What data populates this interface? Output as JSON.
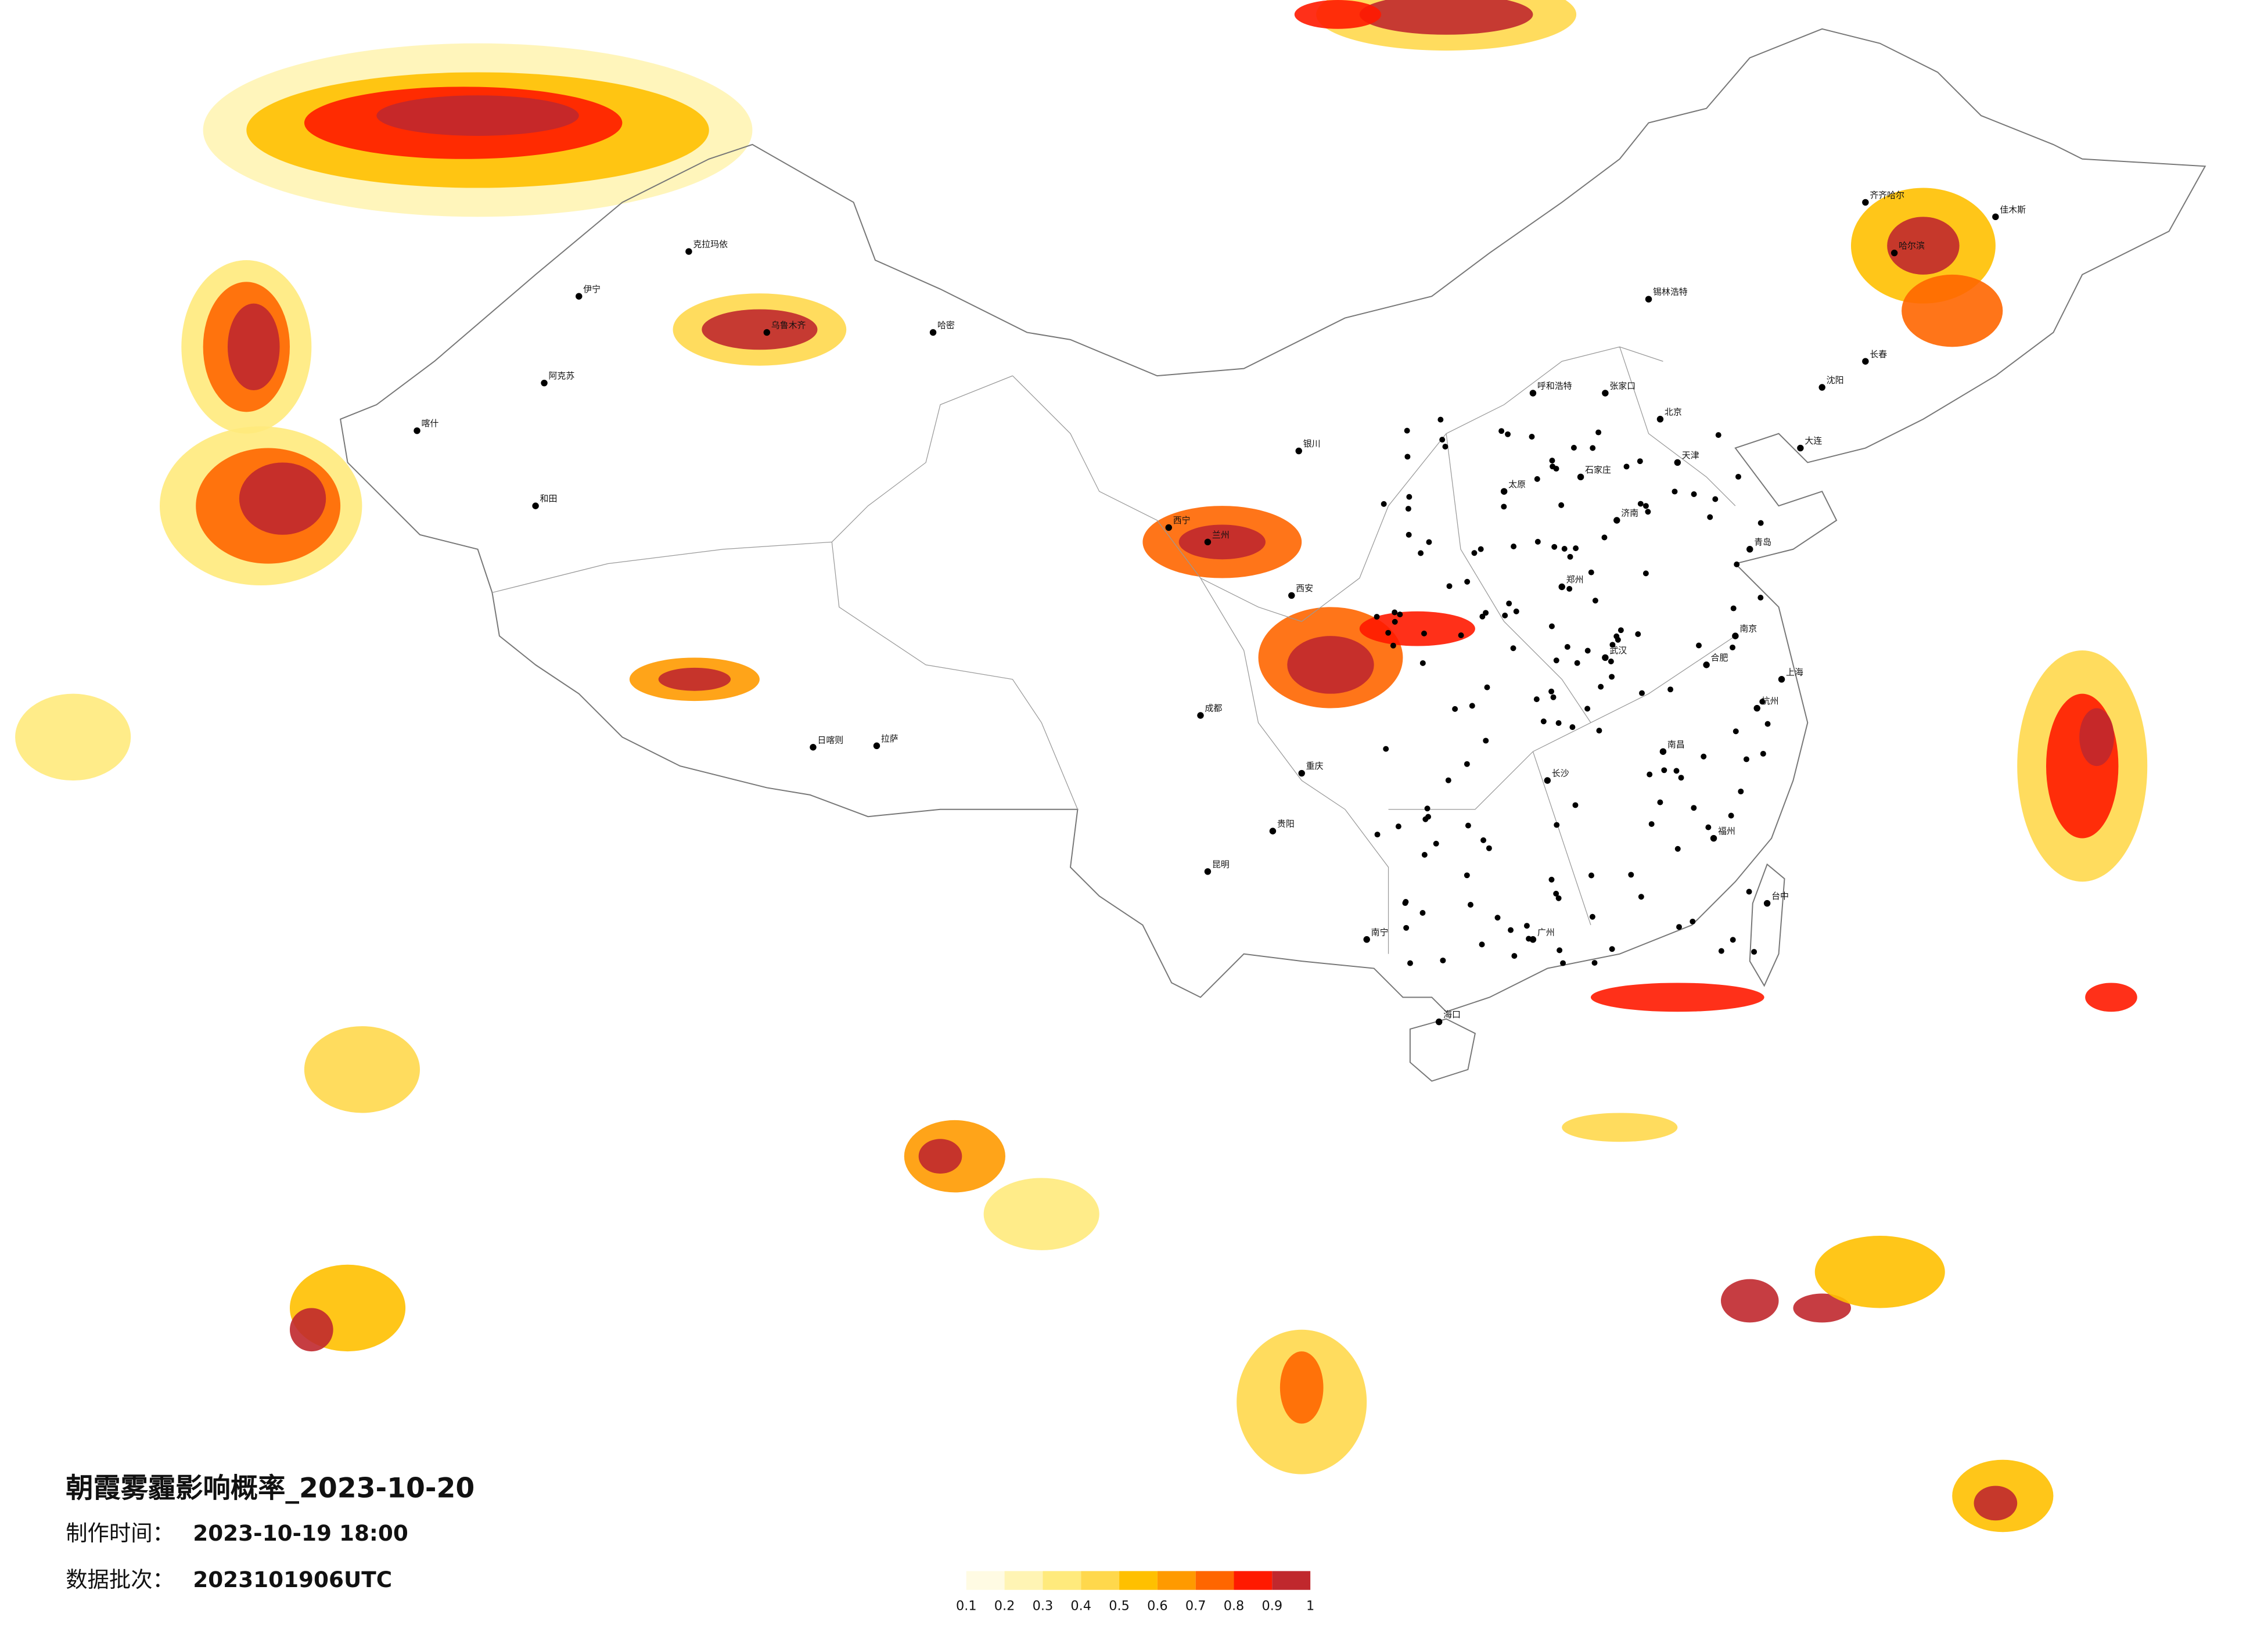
{
  "title": "朝霞雾霾影响概率_2023-10-20",
  "production_time_label": "制作时间：",
  "production_time": "2023-10-19 18:00",
  "batch_label": "数据批次：",
  "batch": "2023101906UTC",
  "legend": {
    "colors": [
      "#fffbe3",
      "#fff4b4",
      "#ffea7c",
      "#ffd84c",
      "#ffc000",
      "#ff9a00",
      "#ff6600",
      "#ff1a00",
      "#c0282d"
    ],
    "ticks": [
      0.1,
      0.2,
      0.3,
      0.4,
      0.5,
      0.6,
      0.7,
      0.8,
      0.9,
      1
    ]
  },
  "cities": [
    "乌鲁木齐",
    "克拉玛依",
    "伊宁",
    "喀什",
    "和田",
    "阿克苏",
    "哈密",
    "日喀则",
    "拉萨",
    "西宁",
    "兰州",
    "银川",
    "呼和浩特",
    "北京",
    "天津",
    "石家庄",
    "太原",
    "济南",
    "郑州",
    "西安",
    "成都",
    "重庆",
    "贵阳",
    "昆明",
    "南宁",
    "广州",
    "海口",
    "长沙",
    "武汉",
    "南昌",
    "合肥",
    "南京",
    "上海",
    "杭州",
    "福州",
    "台中",
    "沈阳",
    "长春",
    "哈尔滨",
    "齐齐哈尔",
    "佳木斯",
    "锡林浩特",
    "张家口",
    "大连",
    "青岛"
  ]
}
